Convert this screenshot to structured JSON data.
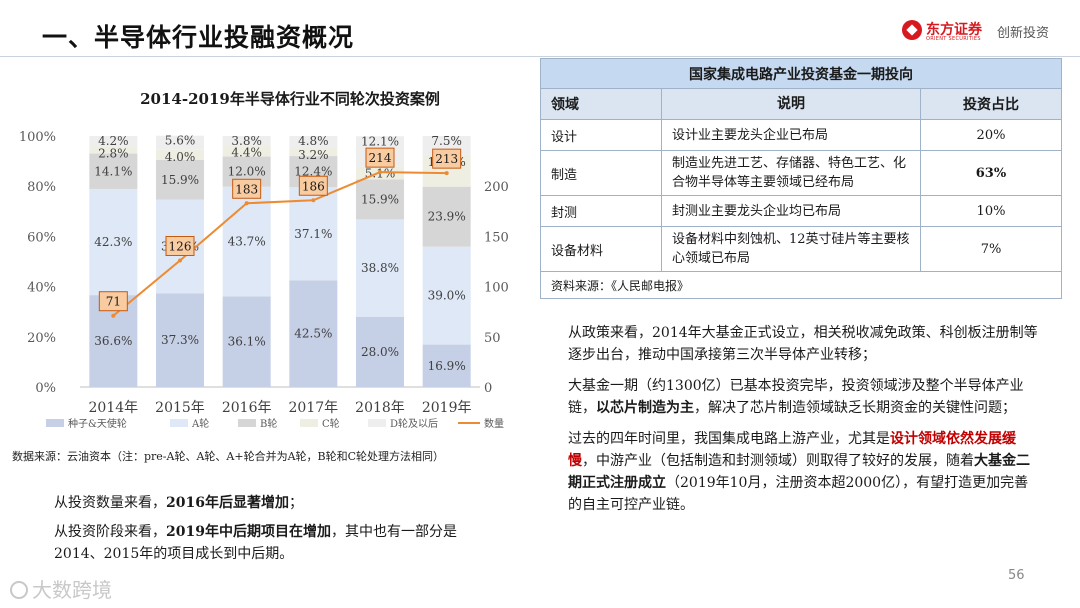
{
  "slide": {
    "title": "一、半导体行业投融资概况",
    "brand_name": "东方证券",
    "brand_en": "ORIENT SECURITIES",
    "brand_slogan": "创新投资",
    "page_number": "56",
    "watermark": "大数跨境"
  },
  "chart_data": {
    "type": "bar",
    "stacked": true,
    "title": "2014-2019年半导体行业不同轮次投资案例",
    "categories": [
      "2014年",
      "2015年",
      "2016年",
      "2017年",
      "2018年",
      "2019年"
    ],
    "y_left_ticks": [
      "0%",
      "20%",
      "40%",
      "60%",
      "80%",
      "100%"
    ],
    "y_right_ticks": [
      "0",
      "50",
      "100",
      "150",
      "200"
    ],
    "ylim_left": [
      0,
      100
    ],
    "ylim_right": [
      0,
      250
    ],
    "series": [
      {
        "name": "种子&天使轮",
        "color": "#c5cfe6",
        "values": [
          36.6,
          37.3,
          36.1,
          42.5,
          28.0,
          16.9
        ],
        "labels": [
          "36.6%",
          "37.3%",
          "36.1%",
          "42.5%",
          "28.0%",
          "16.9%"
        ]
      },
      {
        "name": "A轮",
        "color": "#dee8f6",
        "values": [
          42.3,
          37.3,
          43.7,
          37.1,
          38.8,
          39.0
        ],
        "labels": [
          "42.3%",
          "37.3%",
          "43.7%",
          "37.1%",
          "38.8%",
          "39.0%"
        ]
      },
      {
        "name": "B轮",
        "color": "#d6d6d6",
        "values": [
          14.1,
          15.9,
          12.0,
          12.4,
          15.9,
          23.9
        ],
        "labels": [
          "14.1%",
          "15.9%",
          "12.0%",
          "12.4%",
          "15.9%",
          "23.9%"
        ]
      },
      {
        "name": "C轮",
        "color": "#eeeee2",
        "values": [
          2.8,
          4.0,
          4.4,
          3.2,
          5.1,
          12.7
        ],
        "labels": [
          "2.8%",
          "4.0%",
          "4.4%",
          "3.2%",
          "5.1%",
          "12.7%"
        ]
      },
      {
        "name": "D轮及以后",
        "color": "#eeeeee",
        "values": [
          4.2,
          5.6,
          3.8,
          4.8,
          12.1,
          7.5
        ],
        "labels": [
          "4.2%",
          "5.6%",
          "3.8%",
          "4.8%",
          "12.1%",
          "7.5%"
        ]
      }
    ],
    "line_series": {
      "name": "数量",
      "color": "#ed8b32",
      "values": [
        71,
        126,
        183,
        186,
        214,
        213
      ],
      "labels": [
        "71",
        "126",
        "183",
        "186",
        "214",
        "213"
      ]
    },
    "legend_position": "bottom",
    "grid": false,
    "source": "数据来源：云油资本（注：pre-A轮、A轮、A+轮合并为A轮，B轮和C轮处理方法相同）"
  },
  "text": {
    "quantity_lead": "从投资数量来看，",
    "quantity_bold": "2016年后显著增加",
    "quantity_tail": "；",
    "stage_lead": "从投资阶段来看，",
    "stage_bold": "2019年中后期项目在增加",
    "stage_tail": "，其中也有一部分是2014、2015年的项目成长到中后期。",
    "policy_1": "从政策来看，2014年大基金正式设立，相关税收减免政策、科创板注册制等逐步出台，推动中国承接第三次半导体产业转移；",
    "policy_2_lead": "大基金一期（约1300亿）已基本投资完毕，投资领域涉及整个半导体产业链，",
    "policy_2_bold": "以芯片制造为主",
    "policy_2_tail": "，解决了芯片制造领域缺乏长期资金的关键性问题；",
    "policy_3_lead": "过去的四年时间里，我国集成电路上游产业，尤其是",
    "policy_3_red": "设计领域依然发展缓慢",
    "policy_3_mid": "，中游产业（包括制造和封测领域）则取得了较好的发展，随着",
    "policy_3_bold": "大基金二期正式注册成立",
    "policy_3_tail": "（2019年10月，注册资本超2000亿），有望打造更加完善的自主可控产业链。"
  },
  "fund_table": {
    "caption": "国家集成电路产业投资基金一期投向",
    "headers": [
      "领域",
      "说明",
      "投资占比"
    ],
    "rows": [
      {
        "field": "设计",
        "desc": "设计业主要龙头企业已布局",
        "share": "20%"
      },
      {
        "field": "制造",
        "desc": "制造业先进工艺、存储器、特色工艺、化合物半导体等主要领域已经布局",
        "share": "63%"
      },
      {
        "field": "封测",
        "desc": "封测业主要龙头企业均已布局",
        "share": "10%"
      },
      {
        "field": "设备材料",
        "desc": "设备材料中刻蚀机、12英寸硅片等主要核心领域已布局",
        "share": "7%"
      }
    ],
    "source": "资料来源：《人民邮电报》"
  }
}
